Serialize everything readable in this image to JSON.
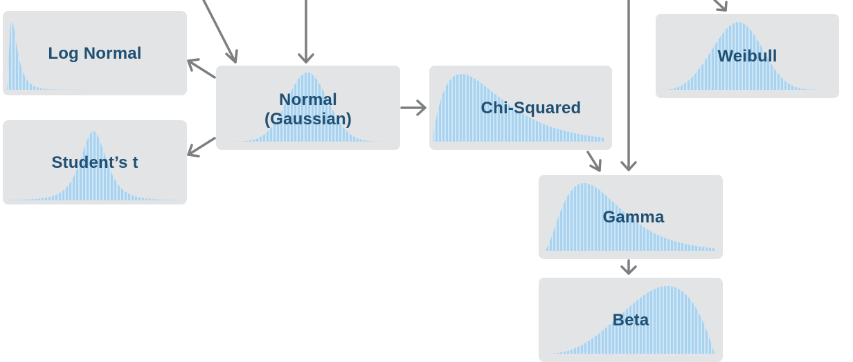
{
  "nodes": {
    "log_normal": {
      "label": "Log Normal"
    },
    "students_t": {
      "label": "Student’s t"
    },
    "normal": {
      "label_line1": "Normal",
      "label_line2": "(Gaussian)"
    },
    "chi_squared": {
      "label": "Chi-Squared"
    },
    "weibull": {
      "label": "Weibull"
    },
    "gamma": {
      "label": "Gamma"
    },
    "beta": {
      "label": "Beta"
    }
  },
  "colors": {
    "card_background": "#e3e4e6",
    "curve_fill": "#a9d2ee",
    "curve_stripe": "#e8f3fb",
    "label_text": "#1f4f73",
    "arrow": "#7d7e80"
  }
}
